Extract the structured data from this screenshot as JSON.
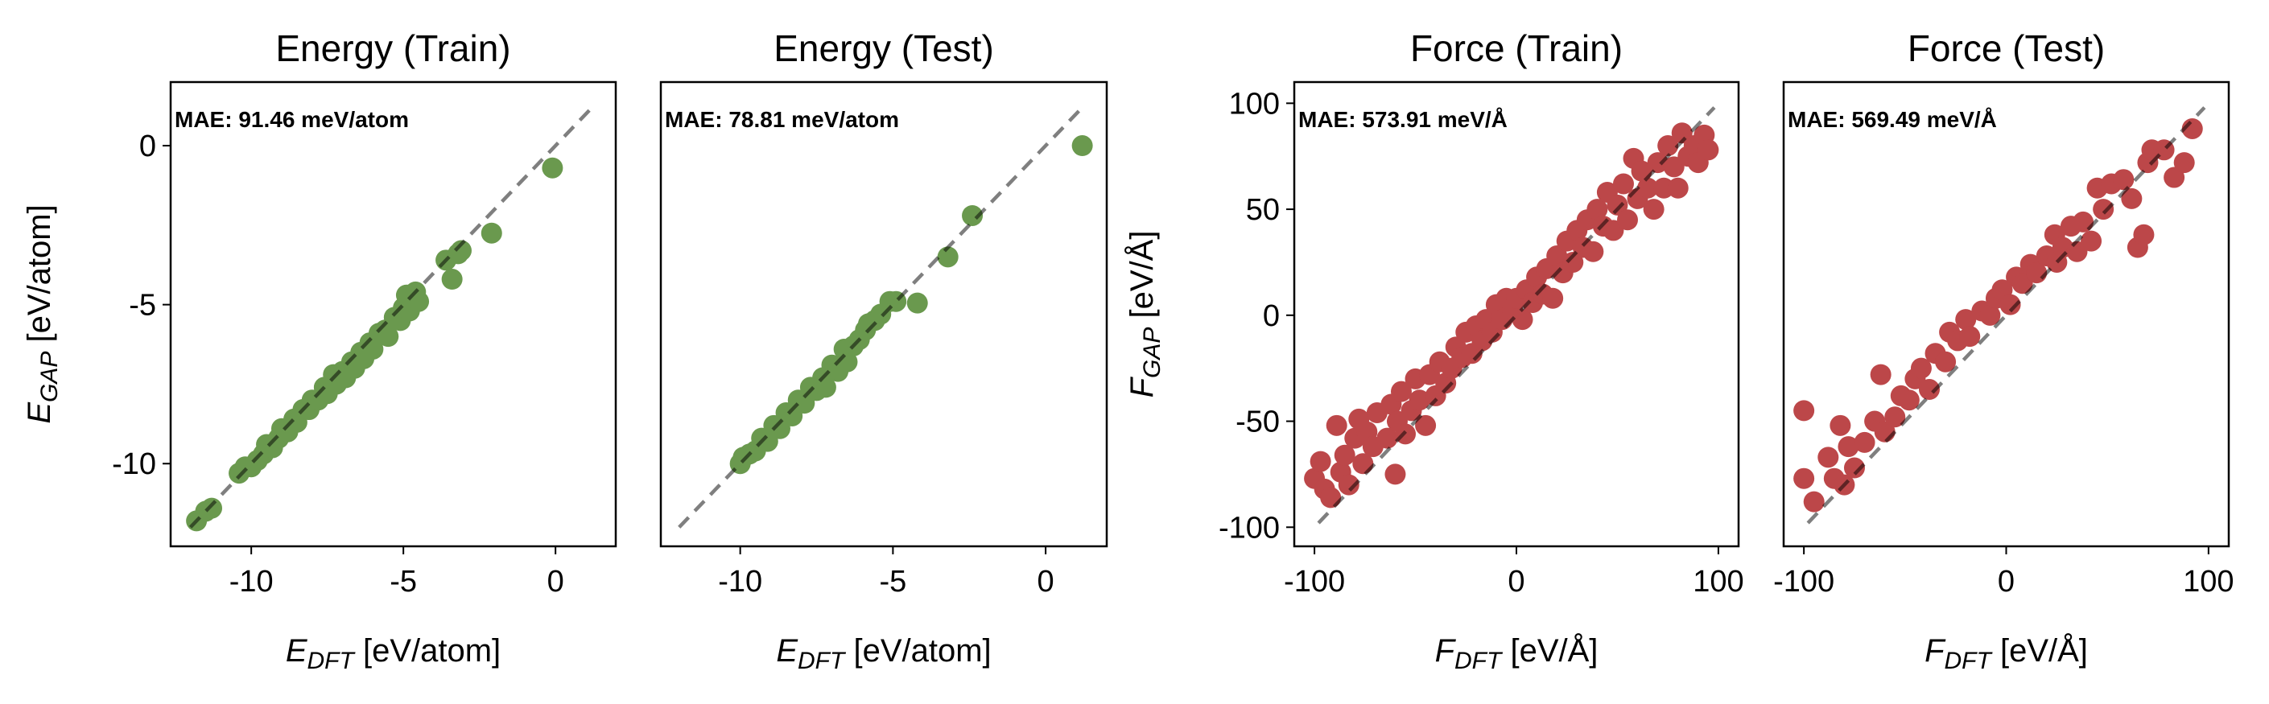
{
  "chart_data": [
    {
      "type": "scatter",
      "title": "Energy (Train)",
      "annotation": "MAE: 91.46 meV/atom",
      "xlabel": {
        "symbol": "E",
        "subscript": "DFT",
        "unit": " [eV/atom]"
      },
      "ylabel": {
        "symbol": "E",
        "subscript": "GAP",
        "unit": " [eV/atom]"
      },
      "xlim": [
        -12.65,
        1.98
      ],
      "ylim": [
        -12.6,
        2.0
      ],
      "xticks": [
        -10,
        -5,
        0
      ],
      "xtick_labels": [
        "-10",
        "-5",
        "0"
      ],
      "yticks": [
        0,
        -5,
        -10
      ],
      "ytick_labels": [
        "0",
        "-5",
        "-10"
      ],
      "show_yticks": true,
      "color": "#6a994e",
      "reference_line": [
        [
          -12,
          -12
        ],
        [
          1.2,
          1.2
        ]
      ],
      "points": [
        [
          -11.8,
          -11.8
        ],
        [
          -11.5,
          -11.5
        ],
        [
          -11.3,
          -11.4
        ],
        [
          -10.4,
          -10.3
        ],
        [
          -10.2,
          -10.1
        ],
        [
          -10.0,
          -10.1
        ],
        [
          -9.8,
          -9.9
        ],
        [
          -9.6,
          -9.7
        ],
        [
          -9.5,
          -9.4
        ],
        [
          -9.3,
          -9.5
        ],
        [
          -9.1,
          -9.2
        ],
        [
          -9.0,
          -8.9
        ],
        [
          -8.8,
          -9.0
        ],
        [
          -8.6,
          -8.6
        ],
        [
          -8.5,
          -8.7
        ],
        [
          -8.3,
          -8.3
        ],
        [
          -8.1,
          -8.3
        ],
        [
          -8.0,
          -8.0
        ],
        [
          -7.8,
          -8.0
        ],
        [
          -7.6,
          -7.6
        ],
        [
          -7.5,
          -7.8
        ],
        [
          -7.3,
          -7.2
        ],
        [
          -7.2,
          -7.5
        ],
        [
          -7.0,
          -7.1
        ],
        [
          -6.9,
          -7.3
        ],
        [
          -6.7,
          -6.8
        ],
        [
          -6.6,
          -7.0
        ],
        [
          -6.4,
          -6.5
        ],
        [
          -6.3,
          -6.7
        ],
        [
          -6.1,
          -6.2
        ],
        [
          -6.0,
          -6.4
        ],
        [
          -5.8,
          -5.9
        ],
        [
          -5.6,
          -5.8
        ],
        [
          -5.5,
          -6.0
        ],
        [
          -5.3,
          -5.4
        ],
        [
          -5.1,
          -5.5
        ],
        [
          -5.0,
          -5.1
        ],
        [
          -4.9,
          -4.7
        ],
        [
          -4.8,
          -5.2
        ],
        [
          -4.6,
          -4.6
        ],
        [
          -4.5,
          -4.9
        ],
        [
          -3.6,
          -3.6
        ],
        [
          -3.4,
          -4.2
        ],
        [
          -3.2,
          -3.4
        ],
        [
          -3.1,
          -3.3
        ],
        [
          -2.1,
          -2.75
        ],
        [
          -0.1,
          -0.7
        ]
      ]
    },
    {
      "type": "scatter",
      "title": "Energy (Test)",
      "annotation": "MAE: 78.81 meV/atom",
      "xlabel": {
        "symbol": "E",
        "subscript": "DFT",
        "unit": " [eV/atom]"
      },
      "xlim": [
        -12.6,
        2.0
      ],
      "ylim": [
        -12.6,
        2.0
      ],
      "xticks": [
        -10,
        -5,
        0
      ],
      "xtick_labels": [
        "-10",
        "-5",
        "0"
      ],
      "show_yticks": false,
      "color": "#6a994e",
      "reference_line": [
        [
          -12,
          -12
        ],
        [
          1.2,
          1.2
        ]
      ],
      "points": [
        [
          -10.0,
          -10.0
        ],
        [
          -9.9,
          -9.8
        ],
        [
          -9.7,
          -9.7
        ],
        [
          -9.5,
          -9.6
        ],
        [
          -9.3,
          -9.2
        ],
        [
          -9.1,
          -9.3
        ],
        [
          -8.9,
          -8.8
        ],
        [
          -8.7,
          -8.9
        ],
        [
          -8.5,
          -8.4
        ],
        [
          -8.3,
          -8.5
        ],
        [
          -8.1,
          -8.0
        ],
        [
          -7.9,
          -8.1
        ],
        [
          -7.7,
          -7.6
        ],
        [
          -7.5,
          -7.7
        ],
        [
          -7.3,
          -7.3
        ],
        [
          -7.2,
          -7.6
        ],
        [
          -7.0,
          -6.9
        ],
        [
          -6.8,
          -7.1
        ],
        [
          -6.6,
          -6.4
        ],
        [
          -6.5,
          -6.8
        ],
        [
          -6.3,
          -6.3
        ],
        [
          -6.1,
          -6.1
        ],
        [
          -5.9,
          -5.8
        ],
        [
          -5.8,
          -5.6
        ],
        [
          -5.6,
          -5.5
        ],
        [
          -5.4,
          -5.3
        ],
        [
          -5.1,
          -4.9
        ],
        [
          -4.9,
          -4.9
        ],
        [
          -4.2,
          -4.95
        ],
        [
          -3.2,
          -3.5
        ],
        [
          -2.4,
          -2.2
        ],
        [
          1.2,
          0.0
        ]
      ]
    },
    {
      "type": "scatter",
      "title": "Force (Train)",
      "annotation": "MAE: 573.91 meV/Å",
      "xlabel": {
        "symbol": "F",
        "subscript": "DFT",
        "unit": " [eV/Å]"
      },
      "ylabel": {
        "symbol": "F",
        "subscript": "GAP",
        "unit": " [eV/Å]"
      },
      "xlim": [
        -110,
        110
      ],
      "ylim": [
        -109,
        110
      ],
      "xticks": [
        -100,
        0,
        100
      ],
      "xtick_labels": [
        "-100",
        "0",
        "100"
      ],
      "yticks": [
        100,
        50,
        0,
        -50,
        -100
      ],
      "ytick_labels": [
        "100",
        "50",
        "0",
        "-50",
        "-100"
      ],
      "show_yticks": true,
      "color": "#bc4749",
      "reference_line": [
        [
          -98,
          -98
        ],
        [
          98,
          98
        ]
      ],
      "points": [
        [
          -100,
          -77
        ],
        [
          -97,
          -69
        ],
        [
          -95,
          -82
        ],
        [
          -92,
          -86
        ],
        [
          -89,
          -52
        ],
        [
          -87,
          -74
        ],
        [
          -85,
          -66
        ],
        [
          -83,
          -80
        ],
        [
          -80,
          -58
        ],
        [
          -78,
          -49
        ],
        [
          -76,
          -70
        ],
        [
          -74,
          -55
        ],
        [
          -71,
          -62
        ],
        [
          -69,
          -46
        ],
        [
          -60,
          -75
        ],
        [
          -64,
          -58
        ],
        [
          -62,
          -42
        ],
        [
          -59,
          -50
        ],
        [
          -57,
          -36
        ],
        [
          -55,
          -56
        ],
        [
          -52,
          -45
        ],
        [
          -50,
          -30
        ],
        [
          -48,
          -40
        ],
        [
          -45,
          -52
        ],
        [
          -43,
          -28
        ],
        [
          -40,
          -38
        ],
        [
          -38,
          -22
        ],
        [
          -35,
          -32
        ],
        [
          -32,
          -25
        ],
        [
          -30,
          -15
        ],
        [
          -27,
          -20
        ],
        [
          -25,
          -8
        ],
        [
          -22,
          -18
        ],
        [
          -20,
          -5
        ],
        [
          -17,
          -12
        ],
        [
          -15,
          -2
        ],
        [
          -12,
          -8
        ],
        [
          -10,
          5
        ],
        [
          -7,
          -2
        ],
        [
          -5,
          8
        ],
        [
          -2,
          3
        ],
        [
          0,
          8
        ],
        [
          3,
          -2
        ],
        [
          5,
          12
        ],
        [
          8,
          6
        ],
        [
          10,
          18
        ],
        [
          13,
          10
        ],
        [
          15,
          22
        ],
        [
          18,
          8
        ],
        [
          20,
          28
        ],
        [
          23,
          20
        ],
        [
          25,
          35
        ],
        [
          28,
          25
        ],
        [
          30,
          40
        ],
        [
          33,
          32
        ],
        [
          35,
          45
        ],
        [
          38,
          30
        ],
        [
          40,
          50
        ],
        [
          43,
          42
        ],
        [
          45,
          58
        ],
        [
          48,
          40
        ],
        [
          50,
          52
        ],
        [
          53,
          62
        ],
        [
          55,
          45
        ],
        [
          58,
          74
        ],
        [
          60,
          55
        ],
        [
          62,
          68
        ],
        [
          65,
          60
        ],
        [
          68,
          50
        ],
        [
          70,
          72
        ],
        [
          73,
          60
        ],
        [
          75,
          80
        ],
        [
          78,
          70
        ],
        [
          80,
          60
        ],
        [
          82,
          86
        ],
        [
          85,
          75
        ],
        [
          88,
          80
        ],
        [
          90,
          72
        ],
        [
          93,
          85
        ],
        [
          95,
          78
        ]
      ]
    },
    {
      "type": "scatter",
      "title": "Force (Test)",
      "annotation": "MAE: 569.49 meV/Å",
      "xlabel": {
        "symbol": "F",
        "subscript": "DFT",
        "unit": " [eV/Å]"
      },
      "xlim": [
        -110,
        110
      ],
      "ylim": [
        -109,
        110
      ],
      "xticks": [
        -100,
        0,
        100
      ],
      "xtick_labels": [
        "-100",
        "0",
        "100"
      ],
      "show_yticks": false,
      "color": "#bc4749",
      "reference_line": [
        [
          -98,
          -98
        ],
        [
          98,
          98
        ]
      ],
      "points": [
        [
          -100,
          -45
        ],
        [
          -100,
          -77
        ],
        [
          -95,
          -88
        ],
        [
          -88,
          -67
        ],
        [
          -85,
          -77
        ],
        [
          -82,
          -52
        ],
        [
          -80,
          -80
        ],
        [
          -78,
          -62
        ],
        [
          -75,
          -72
        ],
        [
          -70,
          -60
        ],
        [
          -62,
          -28
        ],
        [
          -65,
          -50
        ],
        [
          -60,
          -55
        ],
        [
          -55,
          -48
        ],
        [
          -52,
          -38
        ],
        [
          -48,
          -40
        ],
        [
          -45,
          -30
        ],
        [
          -42,
          -25
        ],
        [
          -38,
          -35
        ],
        [
          -35,
          -18
        ],
        [
          -30,
          -22
        ],
        [
          -28,
          -8
        ],
        [
          -24,
          -12
        ],
        [
          -20,
          -2
        ],
        [
          -18,
          -10
        ],
        [
          -12,
          2
        ],
        [
          -8,
          0
        ],
        [
          -5,
          8
        ],
        [
          -2,
          12
        ],
        [
          2,
          5
        ],
        [
          5,
          18
        ],
        [
          8,
          15
        ],
        [
          12,
          24
        ],
        [
          15,
          20
        ],
        [
          20,
          28
        ],
        [
          24,
          38
        ],
        [
          25,
          25
        ],
        [
          28,
          32
        ],
        [
          32,
          42
        ],
        [
          35,
          30
        ],
        [
          38,
          44
        ],
        [
          42,
          35
        ],
        [
          45,
          60
        ],
        [
          48,
          50
        ],
        [
          52,
          62
        ],
        [
          58,
          64
        ],
        [
          62,
          55
        ],
        [
          65,
          32
        ],
        [
          68,
          38
        ],
        [
          70,
          72
        ],
        [
          72,
          78
        ],
        [
          78,
          78
        ],
        [
          83,
          65
        ],
        [
          88,
          72
        ],
        [
          92,
          88
        ]
      ]
    }
  ]
}
